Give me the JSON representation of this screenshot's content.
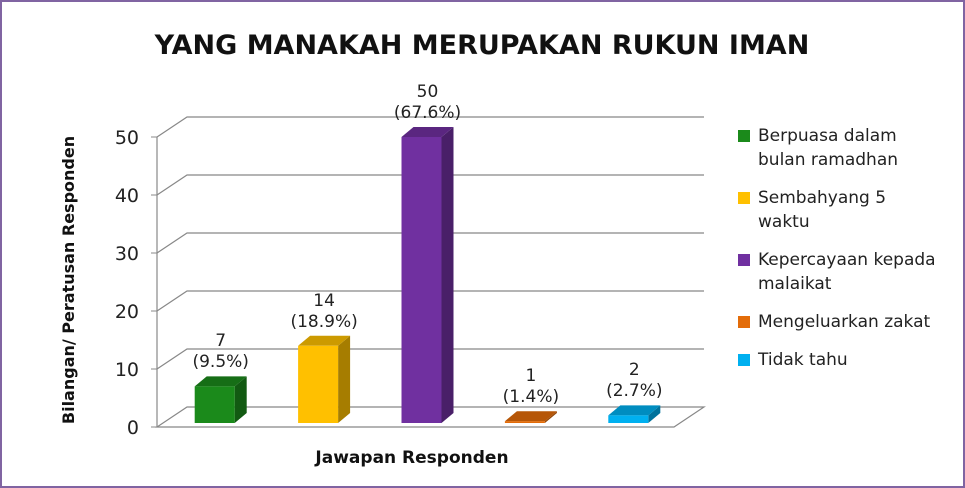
{
  "chart_data": {
    "type": "bar",
    "title": "YANG MANAKAH MERUPAKAN RUKUN IMAN",
    "ylabel": "Bilangan/ Peratusan Responden",
    "xlabel": "Jawapan Responden",
    "categories": [
      "Berpuasa dalam bulan ramadhan",
      "Sembahyang 5 waktu",
      "Kepercayaan kepada malaikat",
      "Mengeluarkan zakat",
      "Tidak tahu"
    ],
    "values": [
      7,
      14,
      50,
      1,
      2
    ],
    "value_labels": [
      "7 (9.5%)",
      "14 (18.9%)",
      "50 (67.6%)",
      "1 (1.4%)",
      "2 (2.7%)"
    ],
    "colors": [
      "#1b8a1b",
      "#ffc000",
      "#7030a0",
      "#e36c09",
      "#00b0f0"
    ],
    "ylim": [
      0,
      50
    ],
    "yticks": [
      0,
      10,
      20,
      30,
      40,
      50
    ],
    "grid": true,
    "legend": "right"
  }
}
